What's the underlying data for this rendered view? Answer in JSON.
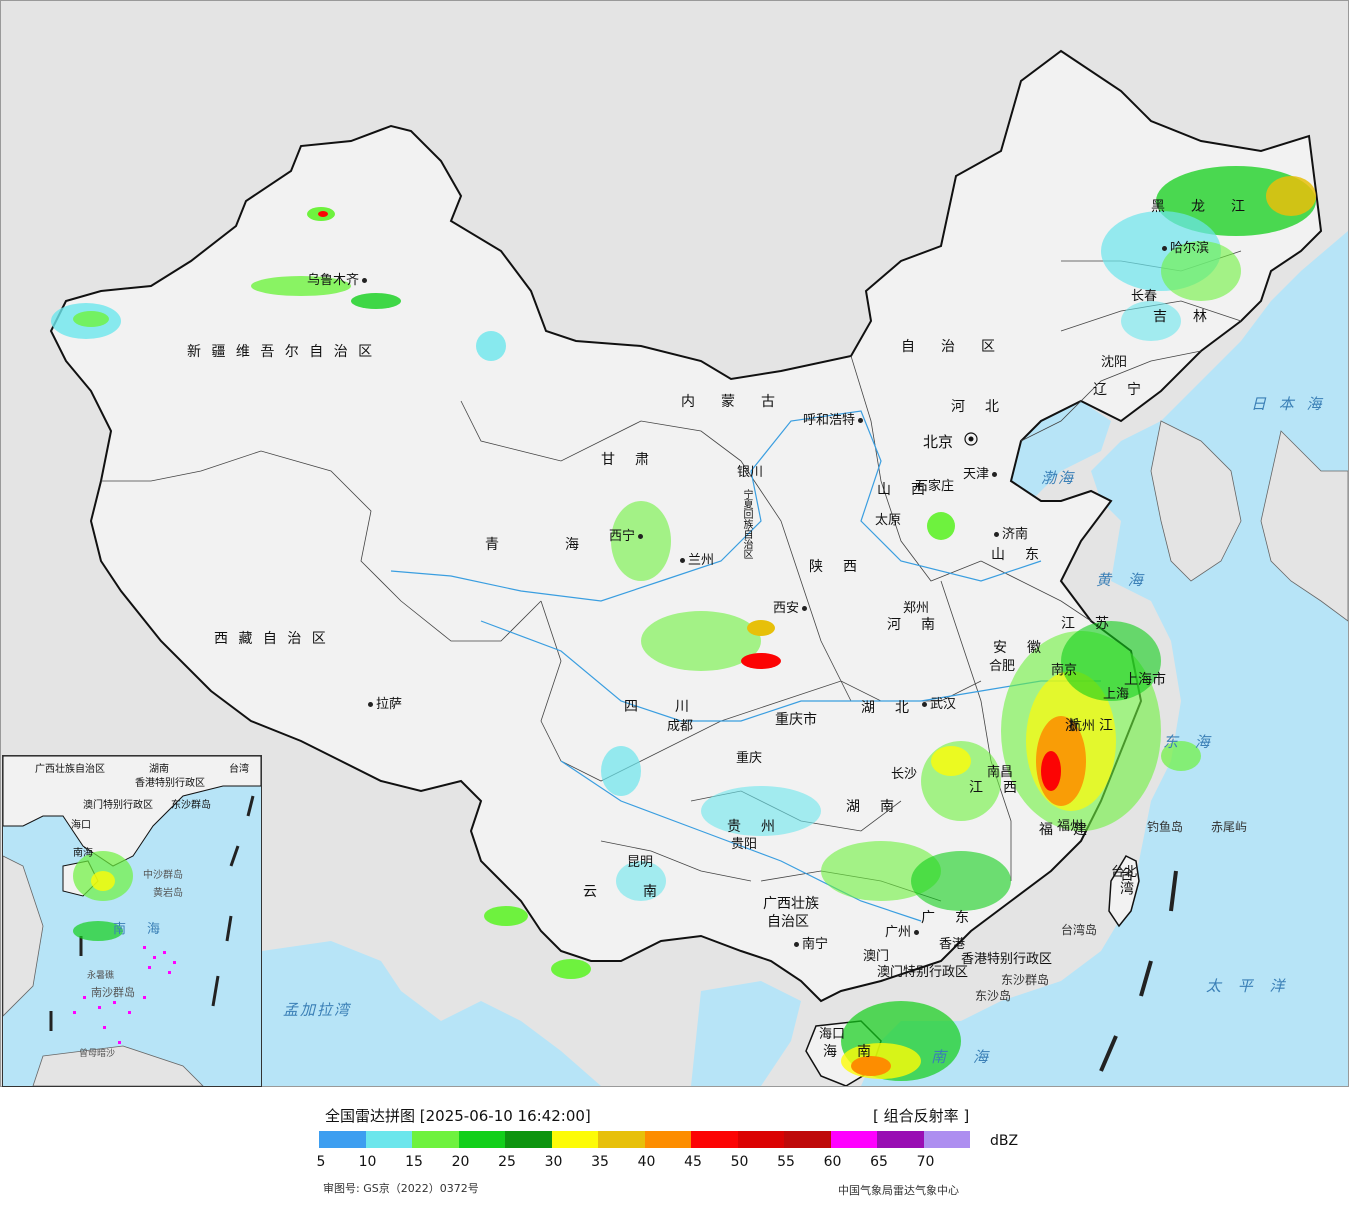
{
  "map": {
    "provinces": [
      {
        "id": "xinjiang",
        "label": "新 疆 维 吾 尔 自 治 区"
      },
      {
        "id": "xizang",
        "label": "西 藏 自 治 区"
      },
      {
        "id": "qinghai",
        "label": "青　　　海"
      },
      {
        "id": "sichuan",
        "label": "四　　川"
      },
      {
        "id": "yunnan",
        "label": "云　　南"
      },
      {
        "id": "guizhou",
        "label": "贵　州"
      },
      {
        "id": "guangxi",
        "label": "广西壮族"
      },
      {
        "id": "guangxi2",
        "label": "自治区"
      },
      {
        "id": "guangdong",
        "label": "广　东"
      },
      {
        "id": "hunan",
        "label": "湖　南"
      },
      {
        "id": "hubei",
        "label": "湖　北"
      },
      {
        "id": "henan",
        "label": "河　南"
      },
      {
        "id": "shandong",
        "label": "山　东"
      },
      {
        "id": "jiangxi",
        "label": "江　西"
      },
      {
        "id": "fujian",
        "label": "福　建"
      },
      {
        "id": "zhejiang",
        "label": "浙　江"
      },
      {
        "id": "anhui",
        "label": "安　徽"
      },
      {
        "id": "jiangsu",
        "label": "江　苏"
      },
      {
        "id": "chongqing",
        "label": "重庆市"
      },
      {
        "id": "shaanxi",
        "label": "陕　西"
      },
      {
        "id": "gansu",
        "label": "甘　肃"
      },
      {
        "id": "neimenggu",
        "label": "内　蒙　古"
      },
      {
        "id": "neimenggu2",
        "label": "自　治　区"
      },
      {
        "id": "hebei",
        "label": "河　北"
      },
      {
        "id": "shanxi",
        "label": "山　西"
      },
      {
        "id": "liaoning",
        "label": "辽　宁"
      },
      {
        "id": "jilin",
        "label": "吉　林"
      },
      {
        "id": "heilongjiang",
        "label": "黑　龙　江"
      },
      {
        "id": "hainan",
        "label": "海　南"
      },
      {
        "id": "ningxia",
        "label": "宁夏回族自治区"
      },
      {
        "id": "taiwan",
        "label": "台湾"
      },
      {
        "id": "shanghai",
        "label": "上海市"
      },
      {
        "id": "hk",
        "label": "香港特别行政区"
      },
      {
        "id": "macau",
        "label": "澳门特别行政区"
      }
    ],
    "cities": [
      {
        "id": "urumqi",
        "label": "乌鲁木齐"
      },
      {
        "id": "lhasa",
        "label": "拉萨"
      },
      {
        "id": "xining",
        "label": "西宁"
      },
      {
        "id": "lanzhou",
        "label": "兰州"
      },
      {
        "id": "yinchuan",
        "label": "银川"
      },
      {
        "id": "chengdu",
        "label": "成都"
      },
      {
        "id": "chongqing_c",
        "label": "重庆"
      },
      {
        "id": "guiyang",
        "label": "贵阳"
      },
      {
        "id": "kunming",
        "label": "昆明"
      },
      {
        "id": "nanning",
        "label": "南宁"
      },
      {
        "id": "guangzhou",
        "label": "广州"
      },
      {
        "id": "hongkong",
        "label": "香港"
      },
      {
        "id": "aomen",
        "label": "澳门"
      },
      {
        "id": "haikou",
        "label": "海口"
      },
      {
        "id": "xian",
        "label": "西安"
      },
      {
        "id": "zhengzhou",
        "label": "郑州"
      },
      {
        "id": "wuhan",
        "label": "武汉"
      },
      {
        "id": "changsha",
        "label": "长沙"
      },
      {
        "id": "nanchang",
        "label": "南昌"
      },
      {
        "id": "fuzhou",
        "label": "福州"
      },
      {
        "id": "taibei",
        "label": "台北"
      },
      {
        "id": "hangzhou",
        "label": "杭州"
      },
      {
        "id": "hefei",
        "label": "合肥"
      },
      {
        "id": "nanjing",
        "label": "南京"
      },
      {
        "id": "shanghai_c",
        "label": "上海"
      },
      {
        "id": "jinan",
        "label": "济南"
      },
      {
        "id": "taiyuan",
        "label": "太原"
      },
      {
        "id": "shijiazhuang",
        "label": "石家庄"
      },
      {
        "id": "beijing",
        "label": "北京"
      },
      {
        "id": "tianjin",
        "label": "天津"
      },
      {
        "id": "huhehaote",
        "label": "呼和浩特"
      },
      {
        "id": "shenyang",
        "label": "沈阳"
      },
      {
        "id": "changchun",
        "label": "长春"
      },
      {
        "id": "haerbin",
        "label": "哈尔滨"
      }
    ],
    "seas": [
      {
        "id": "bohai",
        "label": "渤海"
      },
      {
        "id": "huanghai",
        "label": "黄 海"
      },
      {
        "id": "donghai",
        "label": "东 海"
      },
      {
        "id": "nanhai",
        "label": "南　海"
      },
      {
        "id": "taipingyang",
        "label": "太 平 洋"
      },
      {
        "id": "ribenhai",
        "label": "日 本 海"
      },
      {
        "id": "mengjialawan",
        "label": "孟加拉湾"
      },
      {
        "id": "taiwandao",
        "label": "台湾岛"
      },
      {
        "id": "diaoyudao",
        "label": "钓鱼岛"
      },
      {
        "id": "chiweiyu",
        "label": "赤尾屿"
      },
      {
        "id": "dongshaqundao",
        "label": "东沙群岛"
      },
      {
        "id": "dongshadao",
        "label": "东沙岛"
      }
    ],
    "inset": {
      "labels": [
        "广西壮族自治区",
        "湖南",
        "台湾",
        "香港特别行政区",
        "澳门特别行政区",
        "东沙群岛",
        "海口",
        "南海",
        "中沙群岛",
        "黄岩岛",
        "南　海",
        "永暑礁",
        "南沙群岛",
        "曾母暗沙"
      ]
    }
  },
  "legend": {
    "title": "全国雷达拼图 [2025-06-10 16:42:00]",
    "product": "[ 组合反射率 ]",
    "unit": "dBZ",
    "colors": [
      "#3d9ef0",
      "#6ce6ec",
      "#6ef23e",
      "#12cf1a",
      "#0d940f",
      "#fdfb07",
      "#e7c00a",
      "#fd8d00",
      "#fc0404",
      "#db0202",
      "#bf0909",
      "#ff00ff",
      "#990db3",
      "#ad8ef0"
    ],
    "ticks": [
      "5",
      "10",
      "15",
      "20",
      "25",
      "30",
      "35",
      "40",
      "45",
      "50",
      "55",
      "60",
      "65",
      "70"
    ],
    "approval": "审图号: GS京（2022）0372号",
    "source": "中国气象局雷达气象中心"
  }
}
